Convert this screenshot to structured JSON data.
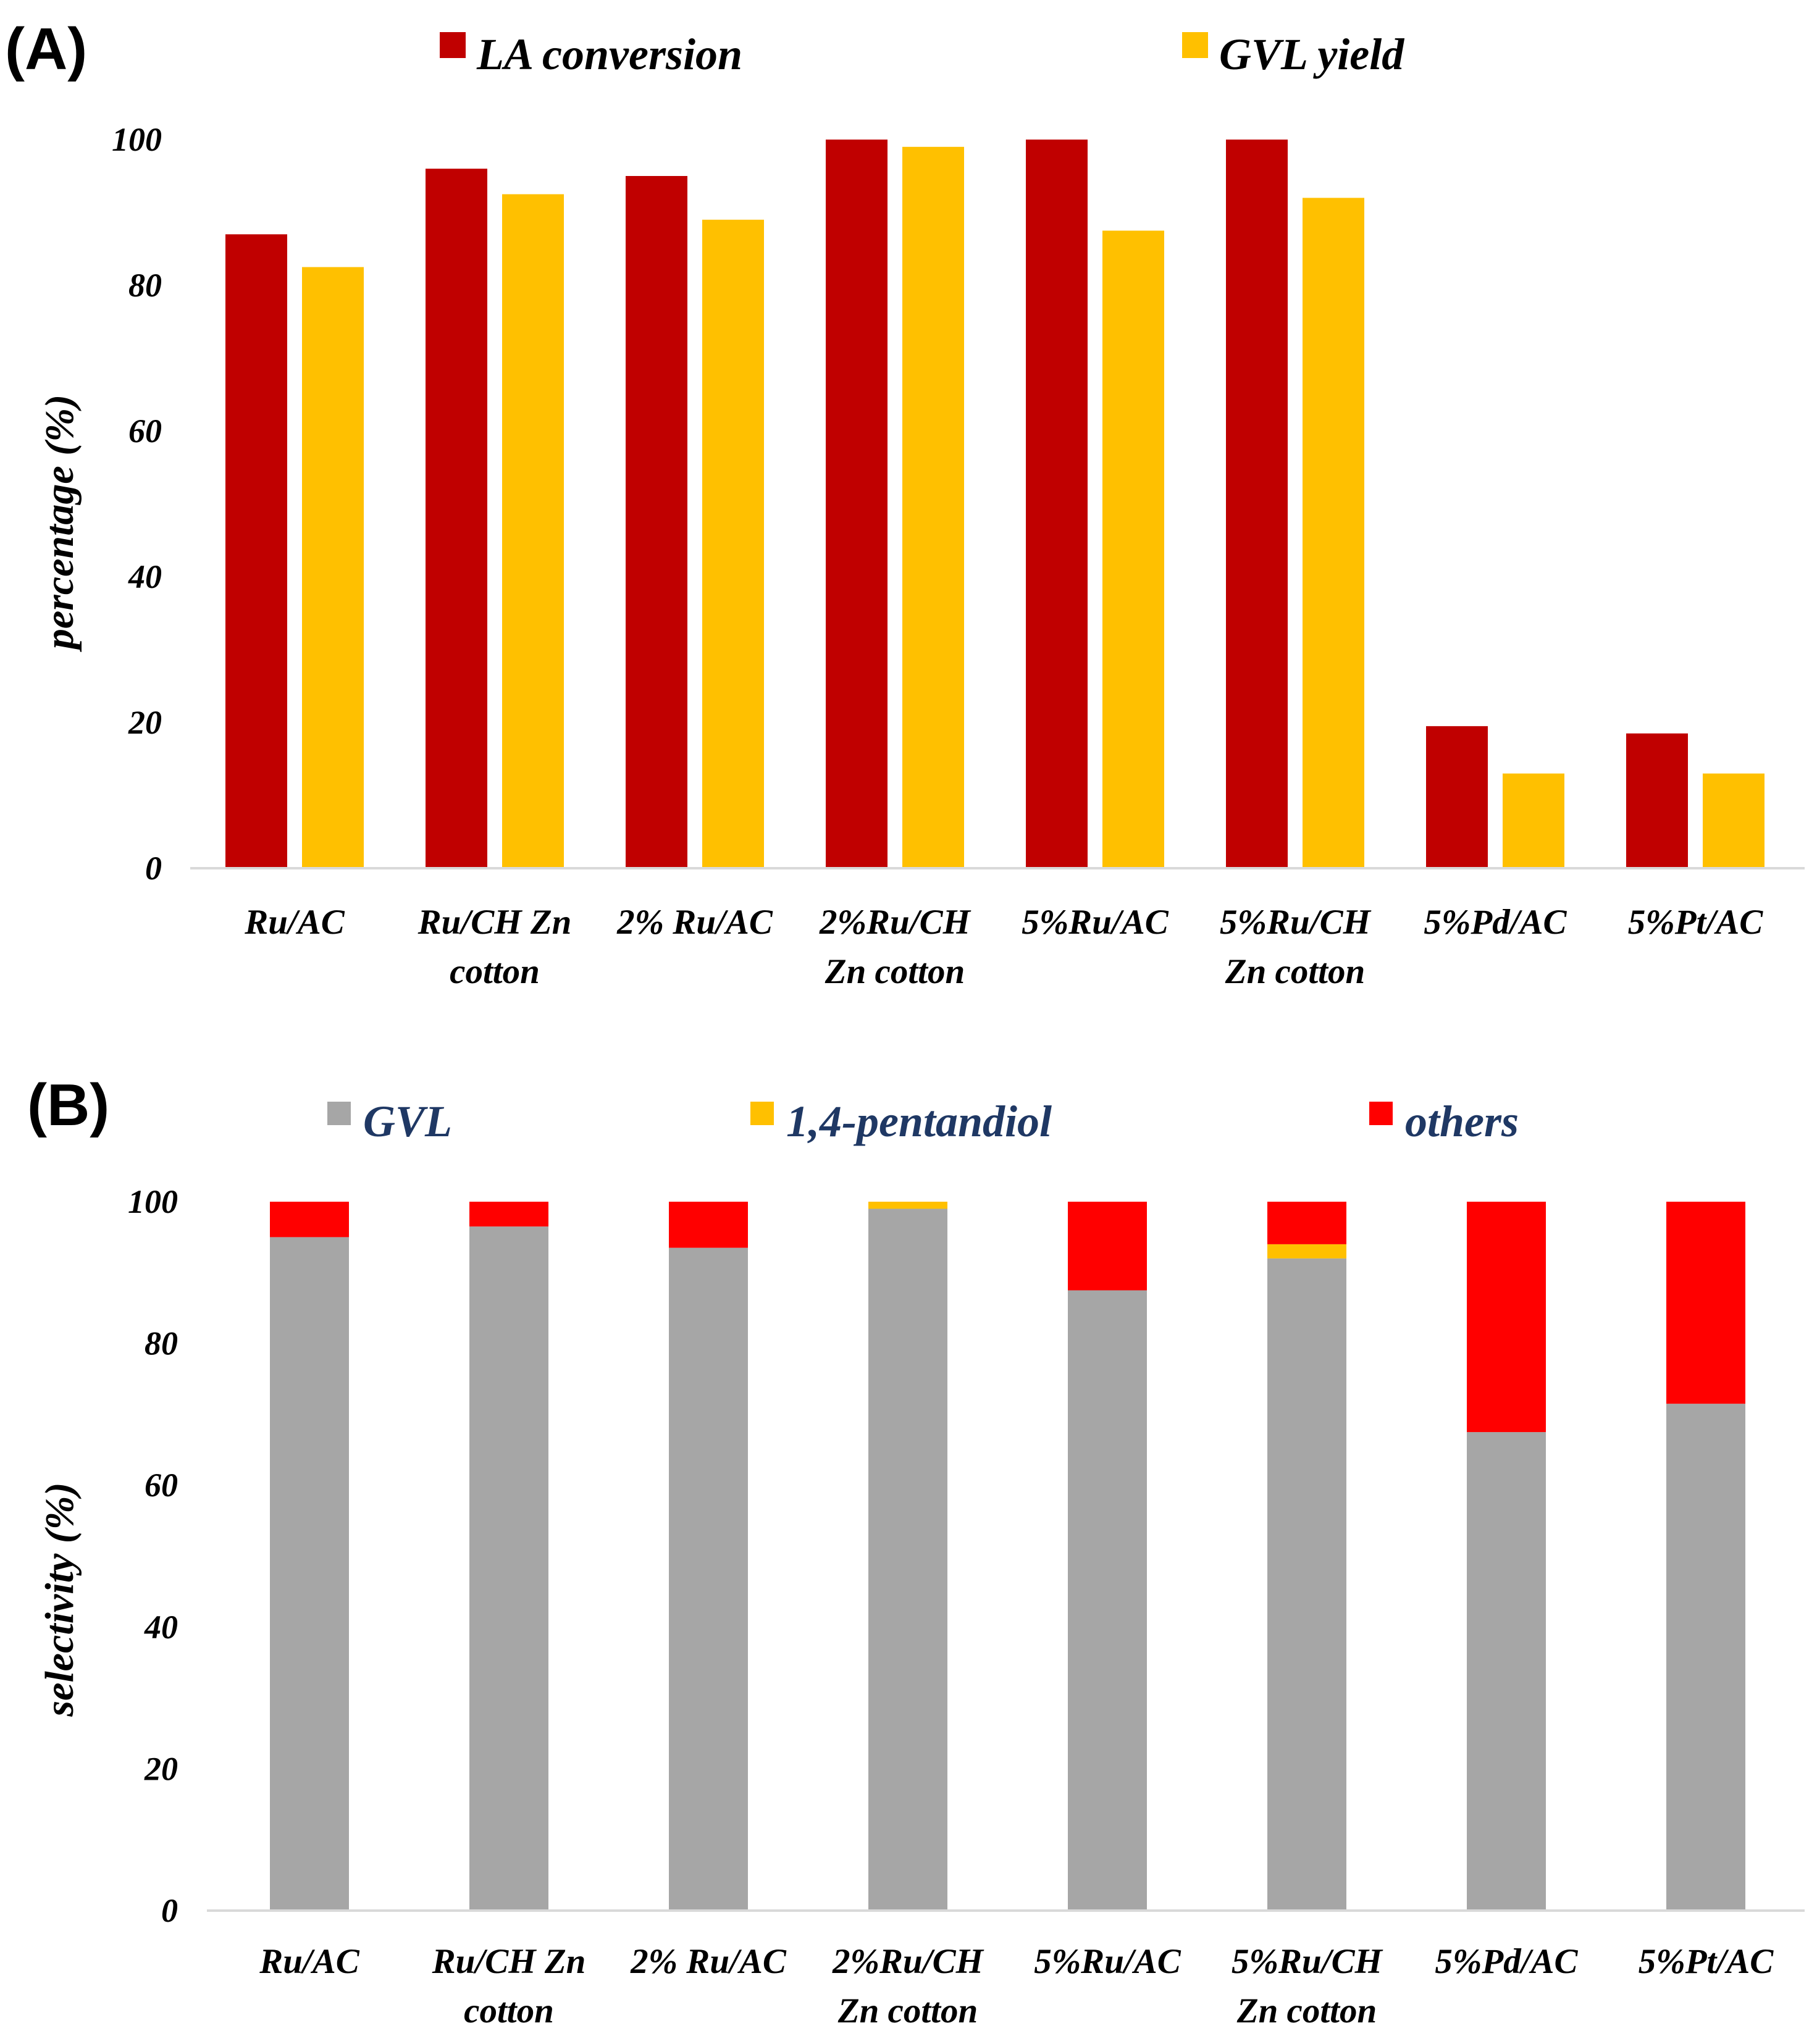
{
  "chart_data": [
    {
      "type": "bar",
      "panel_label": "(A)",
      "ylabel": "percentage (%)",
      "xlabel": "",
      "ylim": [
        0,
        100
      ],
      "yticks": [
        "0",
        "20",
        "40",
        "60",
        "80",
        "100"
      ],
      "grid": false,
      "legend_position": "top",
      "categories": [
        [
          "Ru/AC"
        ],
        [
          "Ru/CH Zn",
          "cotton"
        ],
        [
          "2% Ru/AC"
        ],
        [
          "2%Ru/CH",
          "Zn cotton"
        ],
        [
          "5%Ru/AC"
        ],
        [
          "5%Ru/CH",
          "Zn cotton"
        ],
        [
          "5%Pd/AC"
        ],
        [
          "5%Pt/AC"
        ]
      ],
      "series": [
        {
          "name": "LA conversion",
          "color": "#C00000",
          "values": [
            87,
            96,
            95,
            100,
            100,
            100,
            19.5,
            18.5
          ]
        },
        {
          "name": "GVL yield",
          "color": "#FFC000",
          "values": [
            82.5,
            92.5,
            89,
            99,
            87.5,
            92,
            13,
            13
          ]
        }
      ]
    },
    {
      "type": "bar",
      "stacked": true,
      "panel_label": "(B)",
      "ylabel": "selectivity (%)",
      "xlabel": "",
      "ylim": [
        0,
        100
      ],
      "yticks": [
        "0",
        "20",
        "40",
        "60",
        "80",
        "100"
      ],
      "grid": false,
      "legend_position": "top",
      "categories": [
        [
          "Ru/AC"
        ],
        [
          "Ru/CH Zn",
          "cotton"
        ],
        [
          "2% Ru/AC"
        ],
        [
          "2%Ru/CH",
          "Zn cotton"
        ],
        [
          "5%Ru/AC"
        ],
        [
          "5%Ru/CH",
          "Zn cotton"
        ],
        [
          "5%Pd/AC"
        ],
        [
          "5%Pt/AC"
        ]
      ],
      "series": [
        {
          "name": "GVL",
          "color": "#A6A6A6",
          "values": [
            95,
            96.5,
            93.5,
            99,
            87.5,
            92,
            67.5,
            71.5
          ]
        },
        {
          "name": "1,4-pentandiol",
          "color": "#FFC000",
          "values": [
            0,
            0,
            0,
            1,
            0,
            2,
            0,
            0
          ]
        },
        {
          "name": "others",
          "color": "#FF0000",
          "values": [
            5,
            3.5,
            6.5,
            0,
            12.5,
            6,
            32.5,
            28.5
          ]
        }
      ]
    }
  ],
  "legend_text_colors": {
    "A": "#000000",
    "B": "#1F3864"
  }
}
